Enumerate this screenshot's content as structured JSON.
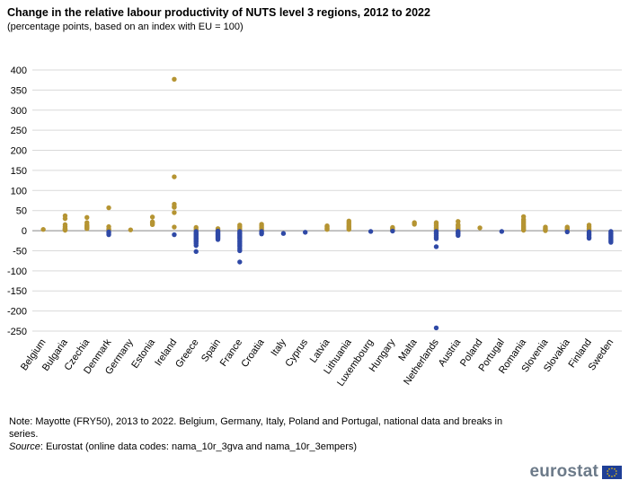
{
  "title": "Change in the relative labour productivity of NUTS level 3 regions, 2012 to 2022",
  "subtitle": "(percentage points, based on an index with EU = 100)",
  "colors": {
    "positive": "#b59432",
    "negative": "#2f49a6",
    "grid": "#d9d9d9",
    "zero_line": "#888888"
  },
  "chart_data": {
    "type": "scatter",
    "title": "Change in the relative labour productivity of NUTS level 3 regions, 2012 to 2022",
    "ylabel": "percentage points",
    "ylim": [
      -250,
      400
    ],
    "yticks": [
      400,
      350,
      300,
      250,
      200,
      150,
      100,
      50,
      0,
      -50,
      -100,
      -150,
      -200,
      -250
    ],
    "categories": [
      "Belgium",
      "Bulgaria",
      "Czechia",
      "Denmark",
      "Germany",
      "Estonia",
      "Ireland",
      "Greece",
      "Spain",
      "France",
      "Croatia",
      "Italy",
      "Cyprus",
      "Latvia",
      "Lithuania",
      "Luxembourg",
      "Hungary",
      "Malta",
      "Netherlands",
      "Austria",
      "Poland",
      "Portugal",
      "Romania",
      "Slovenia",
      "Slovakia",
      "Finland",
      "Sweden"
    ],
    "series": [
      {
        "name": "Belgium",
        "values": [
          3
        ]
      },
      {
        "name": "Bulgaria",
        "values": [
          37,
          30,
          15,
          10,
          6,
          4,
          3,
          2,
          1
        ]
      },
      {
        "name": "Czechia",
        "values": [
          33,
          20,
          15,
          12,
          10,
          8,
          6,
          5
        ]
      },
      {
        "name": "Denmark",
        "values": [
          57,
          10,
          4,
          2,
          -3,
          -6,
          -10
        ]
      },
      {
        "name": "Germany",
        "values": [
          2
        ]
      },
      {
        "name": "Estonia",
        "values": [
          34,
          22,
          20,
          18,
          15
        ]
      },
      {
        "name": "Ireland",
        "values": [
          377,
          134,
          66,
          60,
          58,
          45,
          9,
          -10
        ]
      },
      {
        "name": "Greece",
        "values": [
          8,
          3,
          -2,
          -5,
          -8,
          -10,
          -12,
          -15,
          -18,
          -20,
          -22,
          -25,
          -28,
          -32,
          -37,
          -52
        ]
      },
      {
        "name": "Spain",
        "values": [
          5,
          2,
          -1,
          -3,
          -5,
          -7,
          -9,
          -11,
          -13,
          -15,
          -17,
          -19,
          -22
        ]
      },
      {
        "name": "France",
        "values": [
          14,
          10,
          6,
          2,
          -2,
          -5,
          -8,
          -11,
          -14,
          -17,
          -20,
          -24,
          -28,
          -32,
          -36,
          -40,
          -45,
          -50,
          -78
        ]
      },
      {
        "name": "Croatia",
        "values": [
          16,
          12,
          8,
          4,
          1,
          -2,
          -5,
          -8
        ]
      },
      {
        "name": "Italy",
        "values": [
          -7
        ]
      },
      {
        "name": "Cyprus",
        "values": [
          -4
        ]
      },
      {
        "name": "Latvia",
        "values": [
          12,
          10,
          7,
          5,
          3
        ]
      },
      {
        "name": "Lithuania",
        "values": [
          24,
          20,
          16,
          12,
          9,
          6,
          3
        ]
      },
      {
        "name": "Luxembourg",
        "values": [
          -2
        ]
      },
      {
        "name": "Hungary",
        "values": [
          8,
          6,
          4,
          2,
          1,
          0,
          -1
        ]
      },
      {
        "name": "Malta",
        "values": [
          20,
          16
        ]
      },
      {
        "name": "Netherlands",
        "values": [
          20,
          16,
          12,
          8,
          5,
          2,
          -2,
          -5,
          -8,
          -12,
          -16,
          -20,
          -40,
          -242
        ]
      },
      {
        "name": "Austria",
        "values": [
          23,
          15,
          12,
          8,
          5,
          2,
          -2,
          -5,
          -8,
          -12
        ]
      },
      {
        "name": "Poland",
        "values": [
          7
        ]
      },
      {
        "name": "Portugal",
        "values": [
          -2
        ]
      },
      {
        "name": "Romania",
        "values": [
          35,
          28,
          24,
          20,
          16,
          12,
          9,
          6,
          3,
          1
        ]
      },
      {
        "name": "Slovenia",
        "values": [
          9,
          6,
          4,
          2,
          0
        ]
      },
      {
        "name": "Slovakia",
        "values": [
          9,
          7,
          5,
          2,
          0,
          -3
        ]
      },
      {
        "name": "Finland",
        "values": [
          14,
          10,
          6,
          3,
          0,
          -3,
          -6,
          -9,
          -12,
          -16,
          -19
        ]
      },
      {
        "name": "Sweden",
        "values": [
          -2,
          -5,
          -8,
          -11,
          -14,
          -17,
          -20,
          -23,
          -26,
          -29
        ]
      }
    ]
  },
  "notes": {
    "note": "Note: Mayotte (FRY50), 2013 to 2022. Belgium, Germany, Italy, Poland and Portugal, national data and breaks in series.",
    "source_label": "Source",
    "source_text": ": Eurostat (online data codes: nama_10r_3gva and nama_10r_3empers)"
  },
  "logo": {
    "text": "eurostat",
    "icon": "eu-flag-icon"
  }
}
